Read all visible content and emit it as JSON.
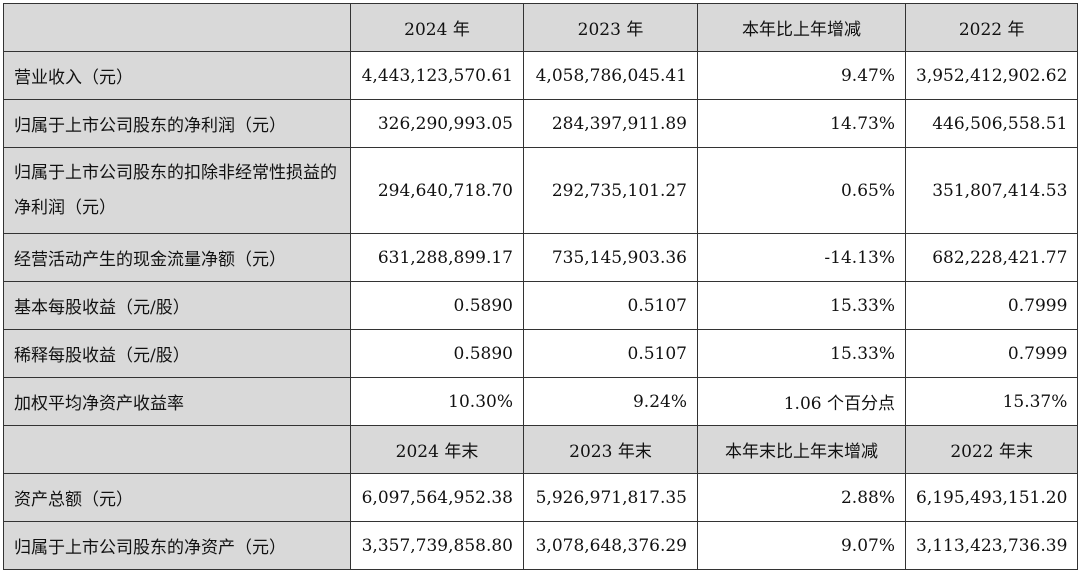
{
  "header1": [
    "2024 年",
    "2023 年",
    "本年比上年增减",
    "2022 年"
  ],
  "rows1": [
    {
      "label": "营业收入（元）",
      "values": [
        "4,443,123,570.61",
        "4,058,786,045.41",
        "9.47%",
        "3,952,412,902.62"
      ]
    },
    {
      "label": "归属于上市公司股东的净利润（元）",
      "values": [
        "326,290,993.05",
        "284,397,911.89",
        "14.73%",
        "446,506,558.51"
      ]
    },
    {
      "label": "归属于上市公司股东的扣除非经常性损益的净利润（元）",
      "values": [
        "294,640,718.70",
        "292,735,101.27",
        "0.65%",
        "351,807,414.53"
      ]
    },
    {
      "label": "经营活动产生的现金流量净额（元）",
      "values": [
        "631,288,899.17",
        "735,145,903.36",
        "-14.13%",
        "682,228,421.77"
      ]
    },
    {
      "label": "基本每股收益（元/股）",
      "values": [
        "0.5890",
        "0.5107",
        "15.33%",
        "0.7999"
      ]
    },
    {
      "label": "稀释每股收益（元/股）",
      "values": [
        "0.5890",
        "0.5107",
        "15.33%",
        "0.7999"
      ]
    },
    {
      "label": "加权平均净资产收益率",
      "values": [
        "10.30%",
        "9.24%",
        "1.06 个百分点",
        "15.37%"
      ]
    }
  ],
  "header2": [
    "2024 年末",
    "2023 年末",
    "本年末比上年末增减",
    "2022 年末"
  ],
  "rows2": [
    {
      "label": "资产总额（元）",
      "values": [
        "6,097,564,952.38",
        "5,926,971,817.35",
        "2.88%",
        "6,195,493,151.20"
      ]
    },
    {
      "label": "归属于上市公司股东的净资产（元）",
      "values": [
        "3,357,739,858.80",
        "3,078,648,376.29",
        "9.07%",
        "3,113,423,736.39"
      ]
    }
  ]
}
